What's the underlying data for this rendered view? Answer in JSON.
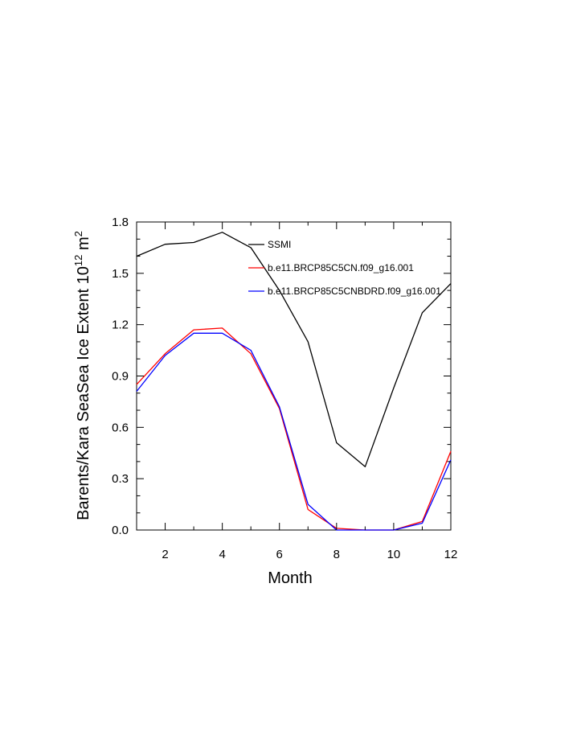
{
  "chart_data": {
    "type": "line",
    "xlabel": "Month",
    "ylabel": "Barents/Kara SeaSea Ice Extent 10",
    "ylabel_exp": "12",
    "ylabel_unit": " m",
    "ylabel_unit_exp": "2",
    "xlim": [
      1,
      12
    ],
    "ylim": [
      0.0,
      1.8
    ],
    "xticks": [
      2,
      4,
      6,
      8,
      10,
      12
    ],
    "xtick_labels": [
      "2",
      "4",
      "6",
      "8",
      "10",
      "12"
    ],
    "yticks": [
      0.0,
      0.3,
      0.6,
      0.9,
      1.2,
      1.5,
      1.8
    ],
    "ytick_labels": [
      "0.0",
      "0.3",
      "0.6",
      "0.9",
      "1.2",
      "1.5",
      "1.8"
    ],
    "legend_position": "top-right",
    "grid": false,
    "x": [
      1,
      2,
      3,
      4,
      5,
      6,
      7,
      8,
      9,
      10,
      11,
      12
    ],
    "series": [
      {
        "name": "SSMI",
        "color": "#000000",
        "values": [
          1.6,
          1.67,
          1.68,
          1.74,
          1.65,
          1.4,
          1.1,
          0.51,
          0.37,
          0.83,
          1.27,
          1.44
        ]
      },
      {
        "name": "b.e11.BRCP85C5CN.f09_g16.001",
        "color": "#ff0000",
        "values": [
          0.85,
          1.03,
          1.17,
          1.18,
          1.03,
          0.71,
          0.12,
          0.01,
          0.0,
          0.0,
          0.05,
          0.46
        ]
      },
      {
        "name": "b.e11.BRCP85C5CNBDRD.f09_g16.001",
        "color": "#0000ff",
        "values": [
          0.81,
          1.02,
          1.15,
          1.15,
          1.05,
          0.72,
          0.15,
          0.0,
          0.0,
          0.0,
          0.04,
          0.41
        ]
      }
    ]
  }
}
